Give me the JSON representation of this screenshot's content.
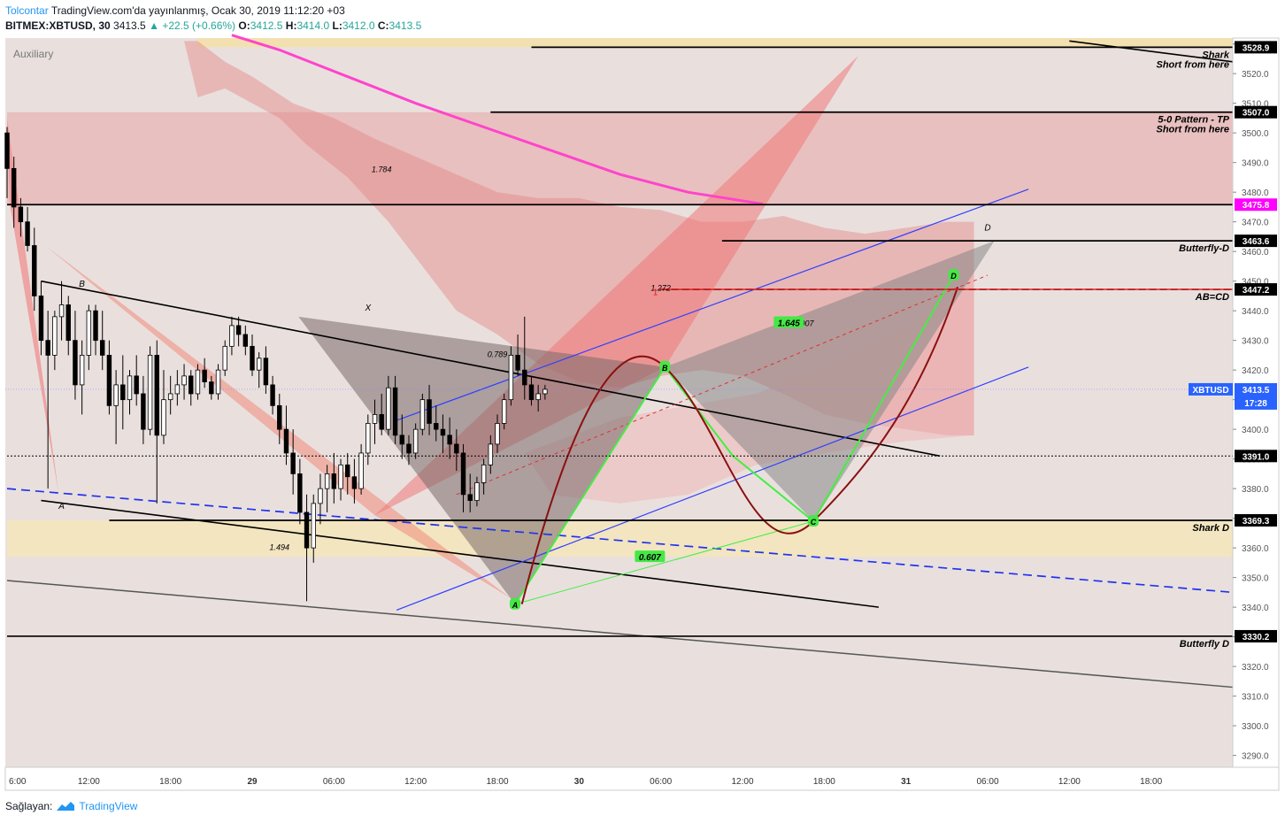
{
  "header": {
    "author": "Tolcontar",
    "published": "TradingView.com'da yayınlanmış, Ocak 30, 2019 11:12:20 +03",
    "symbol": "BITMEX:XBTUSD, 30",
    "last": "3413.5",
    "change": "+22.5 (+0.66%)",
    "o_label": "O:",
    "o": "3412.5",
    "h_label": "H:",
    "h": "3414.0",
    "l_label": "L:",
    "l": "3412.0",
    "c_label": "C:",
    "c": "3413.5"
  },
  "footer": {
    "label": "Sağlayan:",
    "brand": "TradingView"
  },
  "colors": {
    "accent": "#2196f3",
    "ticker_bg": "#2962ff",
    "magenta": "#ff00ff",
    "bull": "#ffffff",
    "bear": "#000000"
  },
  "chart_data": {
    "type": "candlestick",
    "title": "",
    "pane_label": "Auxiliary",
    "ylim": [
      3286,
      3532
    ],
    "xlim": [
      0,
      90
    ],
    "y_ticks": [
      3290,
      3300,
      3310,
      3320,
      3330,
      3340,
      3350,
      3360,
      3370,
      3380,
      3390,
      3400,
      3410,
      3420,
      3430,
      3440,
      3450,
      3460,
      3470,
      3480,
      3490,
      3500,
      3510,
      3520,
      3530
    ],
    "x_ticks": [
      {
        "i": 0,
        "label": "6:00"
      },
      {
        "i": 6,
        "label": "12:00"
      },
      {
        "i": 12,
        "label": "18:00"
      },
      {
        "i": 18,
        "label": "29"
      },
      {
        "i": 24,
        "label": "06:00"
      },
      {
        "i": 30,
        "label": "12:00"
      },
      {
        "i": 36,
        "label": "18:00"
      },
      {
        "i": 42,
        "label": "30"
      },
      {
        "i": 48,
        "label": "06:00"
      },
      {
        "i": 54,
        "label": "12:00"
      },
      {
        "i": 60,
        "label": "18:00"
      },
      {
        "i": 66,
        "label": "31"
      },
      {
        "i": 72,
        "label": "06:00"
      },
      {
        "i": 78,
        "label": "12:00"
      },
      {
        "i": 84,
        "label": "18:00"
      }
    ],
    "candles_start": 0,
    "candles_step": 0.5,
    "candles": [
      [
        3500,
        3502,
        3478,
        3488
      ],
      [
        3488,
        3492,
        3468,
        3475
      ],
      [
        3475,
        3478,
        3465,
        3470
      ],
      [
        3470,
        3475,
        3460,
        3462
      ],
      [
        3462,
        3468,
        3440,
        3445
      ],
      [
        3445,
        3450,
        3425,
        3430
      ],
      [
        3430,
        3440,
        3380,
        3425
      ],
      [
        3425,
        3440,
        3420,
        3438
      ],
      [
        3438,
        3450,
        3430,
        3442
      ],
      [
        3442,
        3445,
        3425,
        3430
      ],
      [
        3430,
        3440,
        3410,
        3415
      ],
      [
        3415,
        3430,
        3405,
        3425
      ],
      [
        3425,
        3442,
        3420,
        3440
      ],
      [
        3440,
        3442,
        3425,
        3430
      ],
      [
        3430,
        3440,
        3420,
        3425
      ],
      [
        3425,
        3430,
        3405,
        3408
      ],
      [
        3408,
        3420,
        3395,
        3415
      ],
      [
        3415,
        3425,
        3400,
        3410
      ],
      [
        3410,
        3420,
        3405,
        3418
      ],
      [
        3418,
        3425,
        3408,
        3412
      ],
      [
        3412,
        3418,
        3395,
        3400
      ],
      [
        3400,
        3428,
        3398,
        3425
      ],
      [
        3425,
        3430,
        3375,
        3398
      ],
      [
        3398,
        3420,
        3395,
        3410
      ],
      [
        3410,
        3418,
        3405,
        3412
      ],
      [
        3412,
        3420,
        3408,
        3415
      ],
      [
        3415,
        3422,
        3410,
        3418
      ],
      [
        3418,
        3420,
        3408,
        3412
      ],
      [
        3412,
        3422,
        3410,
        3420
      ],
      [
        3420,
        3424,
        3414,
        3416
      ],
      [
        3416,
        3418,
        3410,
        3412
      ],
      [
        3412,
        3422,
        3410,
        3420
      ],
      [
        3420,
        3430,
        3418,
        3428
      ],
      [
        3428,
        3438,
        3425,
        3435
      ],
      [
        3435,
        3438,
        3428,
        3432
      ],
      [
        3432,
        3435,
        3425,
        3428
      ],
      [
        3428,
        3432,
        3418,
        3420
      ],
      [
        3420,
        3426,
        3414,
        3424
      ],
      [
        3424,
        3428,
        3412,
        3415
      ],
      [
        3415,
        3418,
        3405,
        3408
      ],
      [
        3408,
        3412,
        3395,
        3400
      ],
      [
        3400,
        3408,
        3388,
        3392
      ],
      [
        3392,
        3400,
        3378,
        3385
      ],
      [
        3385,
        3390,
        3368,
        3372
      ],
      [
        3372,
        3378,
        3342,
        3360
      ],
      [
        3360,
        3378,
        3355,
        3375
      ],
      [
        3375,
        3385,
        3368,
        3380
      ],
      [
        3380,
        3388,
        3372,
        3385
      ],
      [
        3385,
        3392,
        3375,
        3380
      ],
      [
        3380,
        3390,
        3376,
        3388
      ],
      [
        3388,
        3392,
        3378,
        3384
      ],
      [
        3384,
        3390,
        3375,
        3380
      ],
      [
        3380,
        3395,
        3378,
        3392
      ],
      [
        3392,
        3405,
        3388,
        3402
      ],
      [
        3402,
        3410,
        3395,
        3405
      ],
      [
        3405,
        3412,
        3398,
        3400
      ],
      [
        3400,
        3418,
        3398,
        3414
      ],
      [
        3414,
        3418,
        3395,
        3398
      ],
      [
        3398,
        3405,
        3390,
        3395
      ],
      [
        3395,
        3398,
        3388,
        3392
      ],
      [
        3392,
        3402,
        3390,
        3400
      ],
      [
        3400,
        3412,
        3398,
        3410
      ],
      [
        3410,
        3415,
        3398,
        3402
      ],
      [
        3402,
        3408,
        3396,
        3400
      ],
      [
        3400,
        3405,
        3392,
        3398
      ],
      [
        3398,
        3404,
        3390,
        3395
      ],
      [
        3395,
        3400,
        3386,
        3392
      ],
      [
        3392,
        3395,
        3372,
        3378
      ],
      [
        3378,
        3385,
        3372,
        3376
      ],
      [
        3376,
        3384,
        3374,
        3382
      ],
      [
        3382,
        3390,
        3378,
        3388
      ],
      [
        3388,
        3398,
        3385,
        3395
      ],
      [
        3395,
        3405,
        3392,
        3402
      ],
      [
        3402,
        3412,
        3400,
        3410
      ],
      [
        3410,
        3428,
        3408,
        3425
      ],
      [
        3425,
        3432,
        3418,
        3420
      ],
      [
        3420,
        3438,
        3410,
        3415
      ],
      [
        3415,
        3418,
        3408,
        3410
      ],
      [
        3410,
        3415,
        3406,
        3412
      ],
      [
        3412,
        3415,
        3410,
        3413.5
      ]
    ],
    "annotations": {
      "h_levels": [
        {
          "y": 3528.9,
          "label": "Shark",
          "label2": "Short from here",
          "color": "#000000"
        },
        {
          "y": 3507.0,
          "label": "5-0  Pattern - TP",
          "label2": "Short from here",
          "color": "#000000"
        },
        {
          "y": 3475.8,
          "label": "",
          "color": "#000000"
        },
        {
          "y": 3463.6,
          "label": "Butterfly-D",
          "color": "#000000"
        },
        {
          "y": 3447.2,
          "label": "AB=CD",
          "color": "#000000"
        },
        {
          "y": 3391.0,
          "label": "",
          "color": "#000000"
        },
        {
          "y": 3369.3,
          "label": "Shark D",
          "color": "#000000"
        },
        {
          "y": 3330.2,
          "label": "Butterfly D",
          "color": "#000000"
        }
      ],
      "price_badges": [
        {
          "y": 3528.9,
          "text": "3528.9"
        },
        {
          "y": 3507.0,
          "text": "3507.0"
        },
        {
          "y": 3463.6,
          "text": "3463.6"
        },
        {
          "y": 3447.2,
          "text": "3447.2"
        },
        {
          "y": 3391.0,
          "text": "3391.0"
        },
        {
          "y": 3369.3,
          "text": "3369.3"
        },
        {
          "y": 3330.2,
          "text": "3330.2"
        }
      ],
      "magenta_badge": {
        "y": 3475.8,
        "text": "3475.8"
      },
      "ticker_badge": {
        "y": 3413.5,
        "text": "XBTUSD",
        "price": "3413.5",
        "countdown": "17:28"
      },
      "fib_labels": [
        {
          "x": 27.5,
          "y": 3488,
          "text": "1.784"
        },
        {
          "x": 48.0,
          "y": 3448,
          "text": "1.272"
        },
        {
          "x": 36.0,
          "y": 3425.5,
          "text": "0.789"
        },
        {
          "x": 58.5,
          "y": 3436,
          "text": "2.007"
        },
        {
          "x": 20.0,
          "y": 3360.5,
          "text": "1.494"
        },
        {
          "x": 47.2,
          "y": 3357,
          "text": "0.607",
          "green": true
        },
        {
          "x": 57.4,
          "y": 3436,
          "text": "1.645",
          "green": true
        }
      ],
      "point_labels": [
        {
          "x": 5.5,
          "y": 3449,
          "text": "B"
        },
        {
          "x": 4.0,
          "y": 3374,
          "text": "A"
        },
        {
          "x": 26.5,
          "y": 3441,
          "text": "X"
        },
        {
          "x": 72.0,
          "y": 3468,
          "text": "D"
        }
      ],
      "green_points": [
        {
          "x": 37.3,
          "y": 3341,
          "text": "A"
        },
        {
          "x": 48.3,
          "y": 3421,
          "text": "B"
        },
        {
          "x": 59.2,
          "y": 3369,
          "text": "C"
        },
        {
          "x": 69.5,
          "y": 3452,
          "text": "D"
        }
      ],
      "red_marker": {
        "x": 47.6,
        "y": 3446.5,
        "text": "1"
      }
    }
  }
}
